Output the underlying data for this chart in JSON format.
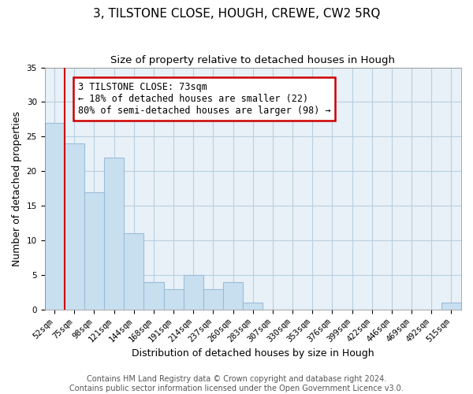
{
  "title": "3, TILSTONE CLOSE, HOUGH, CREWE, CW2 5RQ",
  "subtitle": "Size of property relative to detached houses in Hough",
  "xlabel": "Distribution of detached houses by size in Hough",
  "ylabel": "Number of detached properties",
  "bar_labels": [
    "52sqm",
    "75sqm",
    "98sqm",
    "121sqm",
    "144sqm",
    "168sqm",
    "191sqm",
    "214sqm",
    "237sqm",
    "260sqm",
    "283sqm",
    "307sqm",
    "330sqm",
    "353sqm",
    "376sqm",
    "399sqm",
    "422sqm",
    "446sqm",
    "469sqm",
    "492sqm",
    "515sqm"
  ],
  "bar_values": [
    27,
    24,
    17,
    22,
    11,
    4,
    3,
    5,
    3,
    4,
    1,
    0,
    0,
    0,
    0,
    0,
    0,
    0,
    0,
    0,
    1
  ],
  "bar_color": "#c8dff0",
  "bar_edge_color": "#9bbdd8",
  "annotation_title": "3 TILSTONE CLOSE: 73sqm",
  "annotation_line1": "← 18% of detached houses are smaller (22)",
  "annotation_line2": "80% of semi-detached houses are larger (98) →",
  "annotation_box_facecolor": "#ffffff",
  "annotation_box_edgecolor": "#cc0000",
  "red_line_index": 1,
  "ylim": [
    0,
    35
  ],
  "yticks": [
    0,
    5,
    10,
    15,
    20,
    25,
    30,
    35
  ],
  "background_color": "#e8f0f8",
  "footer1": "Contains HM Land Registry data © Crown copyright and database right 2024.",
  "footer2": "Contains public sector information licensed under the Open Government Licence v3.0.",
  "title_fontsize": 11,
  "subtitle_fontsize": 9.5,
  "axis_label_fontsize": 9,
  "tick_fontsize": 7.5,
  "annotation_fontsize": 8.5,
  "footer_fontsize": 7
}
